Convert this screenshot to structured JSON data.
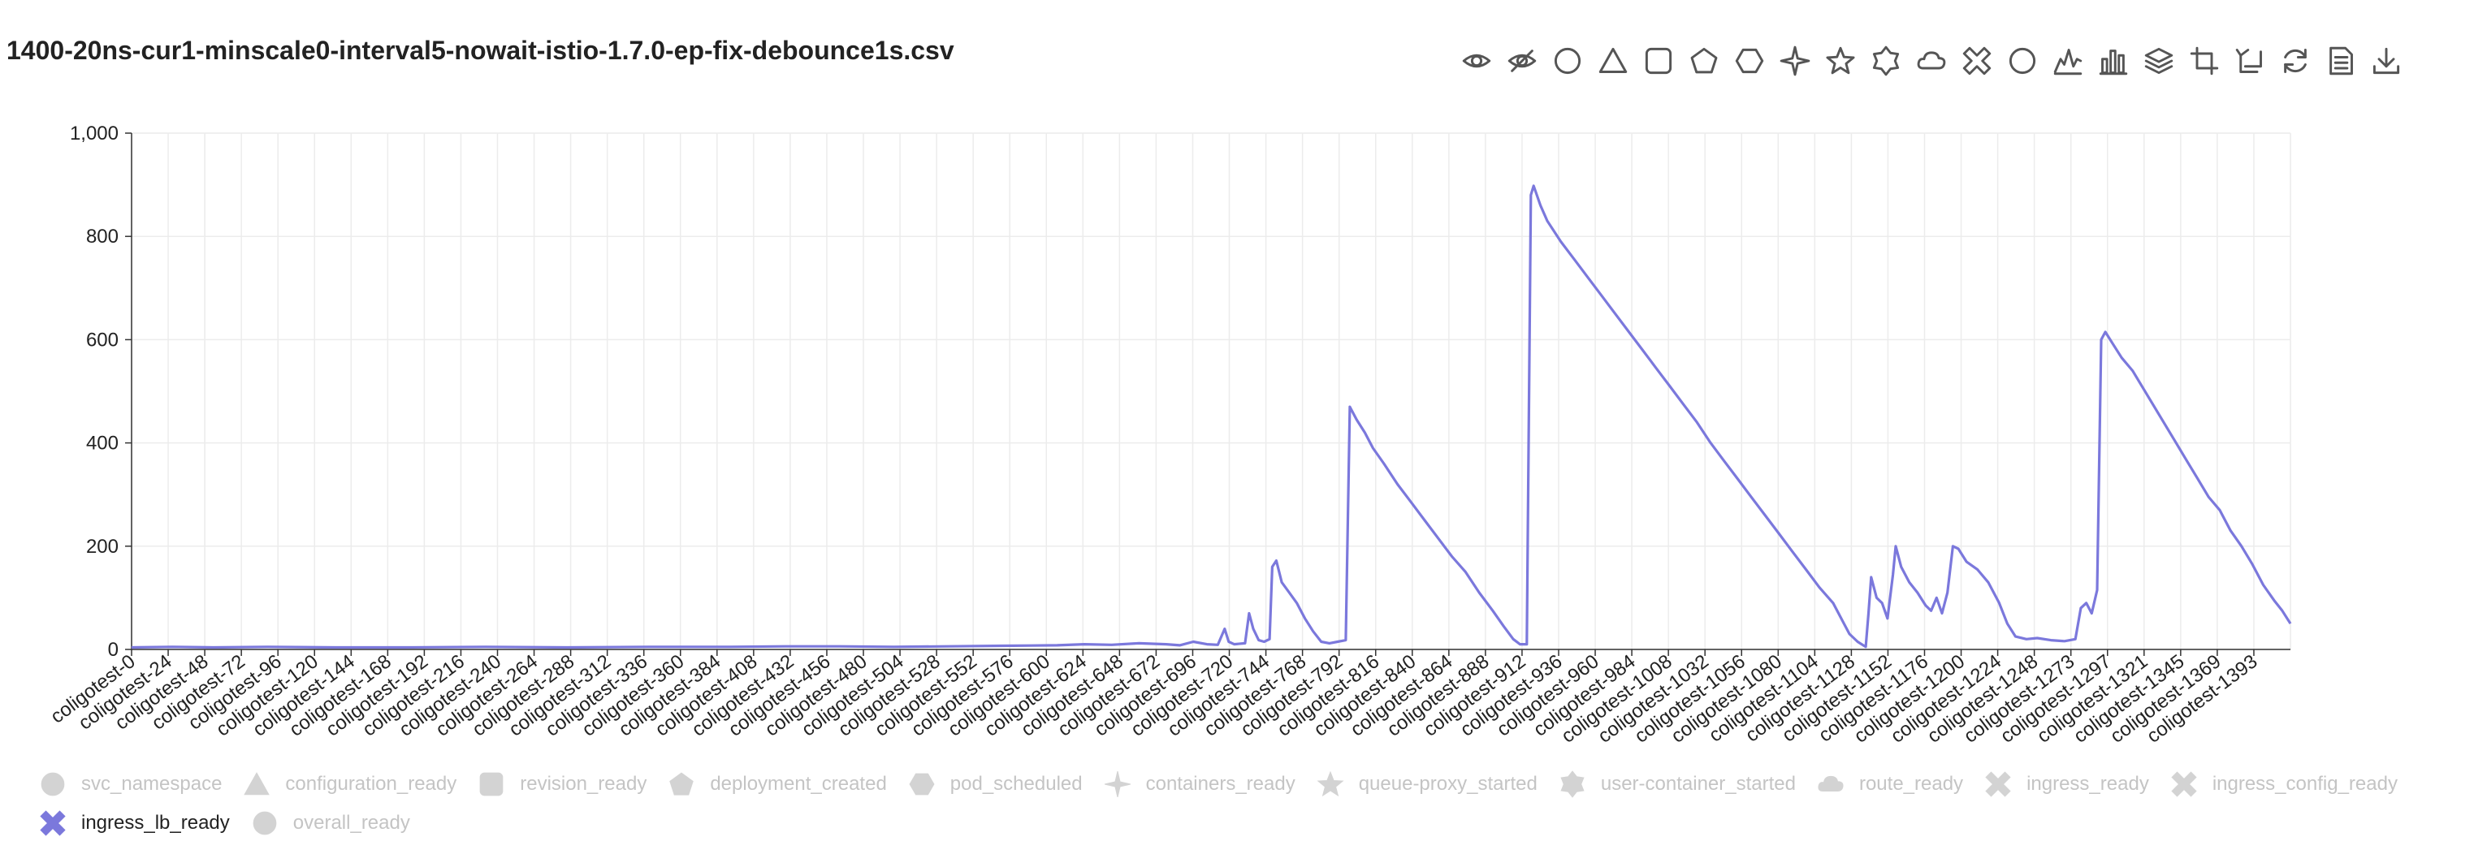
{
  "title": "1400-20ns-cur1-minscale0-interval5-nowait-istio-1.7.0-ep-fix-debounce1s.csv",
  "toolbar": [
    {
      "name": "show-all-icon"
    },
    {
      "name": "hide-all-icon"
    },
    {
      "name": "circle-icon"
    },
    {
      "name": "triangle-icon"
    },
    {
      "name": "square-icon"
    },
    {
      "name": "pentagon-icon"
    },
    {
      "name": "hexagon-icon"
    },
    {
      "name": "sparkle-icon"
    },
    {
      "name": "star-icon"
    },
    {
      "name": "badge-icon"
    },
    {
      "name": "cloud-icon"
    },
    {
      "name": "cross-icon"
    },
    {
      "name": "ring-icon"
    },
    {
      "name": "line-chart-icon"
    },
    {
      "name": "bar-chart-icon"
    },
    {
      "name": "stack-icon"
    },
    {
      "name": "crop-icon"
    },
    {
      "name": "rotate-icon"
    },
    {
      "name": "refresh-icon"
    },
    {
      "name": "data-view-icon"
    },
    {
      "name": "download-icon"
    }
  ],
  "chart_data": {
    "type": "line",
    "title": "",
    "xlabel": "",
    "ylabel": "",
    "ylim": [
      0,
      1000
    ],
    "yticks": [
      "0",
      "200",
      "400",
      "600",
      "800",
      "1,000"
    ],
    "x_tick_labels": [
      "coligotest-0",
      "coligotest-24",
      "coligotest-48",
      "coligotest-72",
      "coligotest-96",
      "coligotest-120",
      "coligotest-144",
      "coligotest-168",
      "coligotest-192",
      "coligotest-216",
      "coligotest-240",
      "coligotest-264",
      "coligotest-288",
      "coligotest-312",
      "coligotest-336",
      "coligotest-360",
      "coligotest-384",
      "coligotest-408",
      "coligotest-432",
      "coligotest-456",
      "coligotest-480",
      "coligotest-504",
      "coligotest-528",
      "coligotest-552",
      "coligotest-576",
      "coligotest-600",
      "coligotest-624",
      "coligotest-648",
      "coligotest-672",
      "coligotest-696",
      "coligotest-720",
      "coligotest-744",
      "coligotest-768",
      "coligotest-792",
      "coligotest-816",
      "coligotest-840",
      "coligotest-864",
      "coligotest-888",
      "coligotest-912",
      "coligotest-936",
      "coligotest-960",
      "coligotest-984",
      "coligotest-1008",
      "coligotest-1032",
      "coligotest-1056",
      "coligotest-1080",
      "coligotest-1104",
      "coligotest-1128",
      "coligotest-1152",
      "coligotest-1176",
      "coligotest-1200",
      "coligotest-1224",
      "coligotest-1248",
      "coligotest-1273",
      "coligotest-1297",
      "coligotest-1321",
      "coligotest-1345",
      "coligotest-1369",
      "coligotest-1393"
    ],
    "grid": true,
    "legend_position": "bottom",
    "series": [
      {
        "name": "ingress_lb_ready",
        "color": "#7b78dc",
        "points": [
          [
            0,
            4
          ],
          [
            30,
            5
          ],
          [
            60,
            4
          ],
          [
            100,
            5
          ],
          [
            150,
            4
          ],
          [
            200,
            4
          ],
          [
            260,
            5
          ],
          [
            320,
            4
          ],
          [
            380,
            5
          ],
          [
            440,
            5
          ],
          [
            480,
            6
          ],
          [
            520,
            6
          ],
          [
            560,
            5
          ],
          [
            600,
            6
          ],
          [
            640,
            7
          ],
          [
            680,
            8
          ],
          [
            700,
            10
          ],
          [
            720,
            9
          ],
          [
            740,
            12
          ],
          [
            760,
            10
          ],
          [
            770,
            8
          ],
          [
            780,
            15
          ],
          [
            790,
            10
          ],
          [
            798,
            9
          ],
          [
            803,
            40
          ],
          [
            806,
            15
          ],
          [
            810,
            10
          ],
          [
            818,
            12
          ],
          [
            821,
            70
          ],
          [
            824,
            40
          ],
          [
            828,
            18
          ],
          [
            832,
            15
          ],
          [
            836,
            20
          ],
          [
            838,
            160
          ],
          [
            841,
            172
          ],
          [
            845,
            130
          ],
          [
            850,
            112
          ],
          [
            856,
            90
          ],
          [
            862,
            60
          ],
          [
            868,
            35
          ],
          [
            874,
            15
          ],
          [
            880,
            12
          ],
          [
            886,
            15
          ],
          [
            892,
            18
          ],
          [
            895,
            470
          ],
          [
            900,
            445
          ],
          [
            906,
            420
          ],
          [
            912,
            390
          ],
          [
            920,
            360
          ],
          [
            930,
            320
          ],
          [
            940,
            285
          ],
          [
            950,
            250
          ],
          [
            960,
            215
          ],
          [
            970,
            180
          ],
          [
            980,
            150
          ],
          [
            990,
            110
          ],
          [
            1000,
            75
          ],
          [
            1008,
            45
          ],
          [
            1015,
            20
          ],
          [
            1020,
            10
          ],
          [
            1025,
            10
          ],
          [
            1028,
            880
          ],
          [
            1030,
            898
          ],
          [
            1035,
            860
          ],
          [
            1040,
            830
          ],
          [
            1050,
            790
          ],
          [
            1060,
            755
          ],
          [
            1070,
            720
          ],
          [
            1080,
            685
          ],
          [
            1090,
            650
          ],
          [
            1100,
            615
          ],
          [
            1110,
            580
          ],
          [
            1120,
            545
          ],
          [
            1130,
            510
          ],
          [
            1140,
            475
          ],
          [
            1150,
            440
          ],
          [
            1160,
            400
          ],
          [
            1170,
            365
          ],
          [
            1180,
            330
          ],
          [
            1190,
            295
          ],
          [
            1200,
            260
          ],
          [
            1210,
            225
          ],
          [
            1220,
            190
          ],
          [
            1230,
            155
          ],
          [
            1240,
            120
          ],
          [
            1250,
            90
          ],
          [
            1256,
            60
          ],
          [
            1262,
            30
          ],
          [
            1268,
            15
          ],
          [
            1274,
            5
          ],
          [
            1276,
            70
          ],
          [
            1278,
            140
          ],
          [
            1282,
            100
          ],
          [
            1286,
            90
          ],
          [
            1290,
            60
          ],
          [
            1294,
            145
          ],
          [
            1296,
            200
          ],
          [
            1300,
            160
          ],
          [
            1306,
            130
          ],
          [
            1312,
            110
          ],
          [
            1318,
            85
          ],
          [
            1322,
            75
          ],
          [
            1326,
            100
          ],
          [
            1330,
            70
          ],
          [
            1334,
            110
          ],
          [
            1338,
            200
          ],
          [
            1342,
            195
          ],
          [
            1348,
            170
          ],
          [
            1356,
            155
          ],
          [
            1364,
            130
          ],
          [
            1372,
            90
          ],
          [
            1378,
            50
          ],
          [
            1384,
            25
          ],
          [
            1392,
            20
          ],
          [
            1400,
            22
          ],
          [
            1410,
            18
          ],
          [
            1420,
            16
          ],
          [
            1428,
            20
          ],
          [
            1432,
            80
          ],
          [
            1436,
            90
          ],
          [
            1440,
            70
          ],
          [
            1444,
            115
          ],
          [
            1447,
            600
          ],
          [
            1450,
            615
          ],
          [
            1456,
            590
          ],
          [
            1462,
            565
          ],
          [
            1470,
            540
          ],
          [
            1478,
            505
          ],
          [
            1486,
            470
          ],
          [
            1494,
            435
          ],
          [
            1502,
            400
          ],
          [
            1510,
            365
          ],
          [
            1518,
            330
          ],
          [
            1526,
            295
          ],
          [
            1534,
            270
          ],
          [
            1542,
            230
          ],
          [
            1550,
            200
          ],
          [
            1558,
            165
          ],
          [
            1566,
            125
          ],
          [
            1574,
            95
          ],
          [
            1580,
            75
          ],
          [
            1586,
            50
          ]
        ]
      }
    ],
    "x_range": [
      0,
      1586
    ]
  },
  "legend": [
    {
      "label": "svc_namespace",
      "icon": "circle-icon",
      "active": false
    },
    {
      "label": "configuration_ready",
      "icon": "triangle-icon",
      "active": false
    },
    {
      "label": "revision_ready",
      "icon": "square-icon",
      "active": false
    },
    {
      "label": "deployment_created",
      "icon": "pentagon-icon",
      "active": false
    },
    {
      "label": "pod_scheduled",
      "icon": "hexagon-icon",
      "active": false
    },
    {
      "label": "containers_ready",
      "icon": "sparkle-icon",
      "active": false
    },
    {
      "label": "queue-proxy_started",
      "icon": "star-icon",
      "active": false
    },
    {
      "label": "user-container_started",
      "icon": "badge-icon",
      "active": false
    },
    {
      "label": "route_ready",
      "icon": "cloud-icon",
      "active": false
    },
    {
      "label": "ingress_ready",
      "icon": "cross-icon",
      "active": false
    },
    {
      "label": "ingress_config_ready",
      "icon": "cross-icon",
      "active": false
    },
    {
      "label": "ingress_lb_ready",
      "icon": "cross-icon",
      "active": true,
      "color": "#7b78dc"
    },
    {
      "label": "overall_ready",
      "icon": "circle-icon",
      "active": false
    }
  ]
}
